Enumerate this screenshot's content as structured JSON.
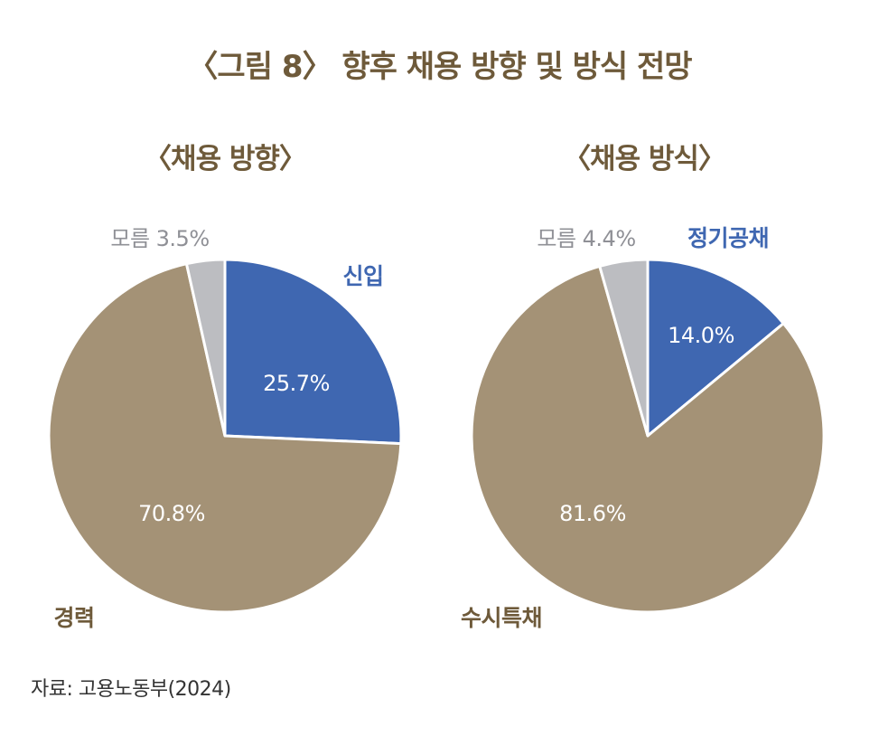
{
  "title": "〈그림 8〉 향후 채용 방향 및 방식 전망",
  "source": "자료: 고용노동부(2024)",
  "colors": {
    "title": "#6e5a3a",
    "blue": "#3f67b1",
    "tan": "#a49276",
    "gray": "#bcbdc1",
    "blue_label": "#3f67b1",
    "tan_label": "#6e5a3a",
    "gray_label": "#8f9096",
    "inner_label": "#ffffff"
  },
  "chart_data": [
    {
      "type": "pie",
      "title": "〈채용 방향〉",
      "slices": [
        {
          "name": "신입",
          "value": 25.7,
          "label": "25.7%",
          "color": "#3f67b1"
        },
        {
          "name": "경력",
          "value": 70.8,
          "label": "70.8%",
          "color": "#a49276"
        },
        {
          "name": "모름",
          "value": 3.5,
          "label": "모름 3.5%",
          "color": "#bcbdc1"
        }
      ]
    },
    {
      "type": "pie",
      "title": "〈채용 방식〉",
      "slices": [
        {
          "name": "정기공채",
          "value": 14.0,
          "label": "14.0%",
          "color": "#3f67b1"
        },
        {
          "name": "수시특채",
          "value": 81.6,
          "label": "81.6%",
          "color": "#a49276"
        },
        {
          "name": "모름",
          "value": 4.4,
          "label": "모름 4.4%",
          "color": "#bcbdc1"
        }
      ]
    }
  ]
}
